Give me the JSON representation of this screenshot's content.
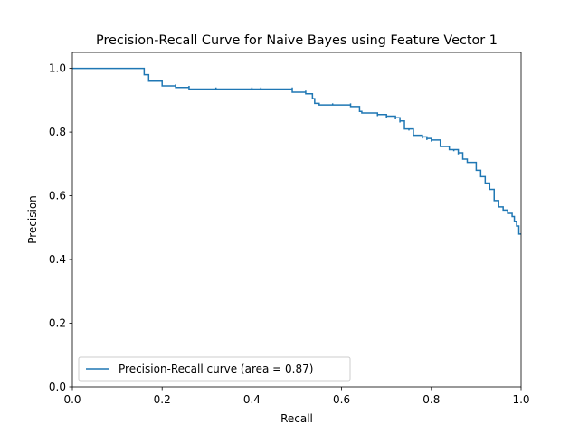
{
  "chart_data": {
    "type": "line",
    "title": "Precision-Recall Curve for Naive Bayes using Feature Vector 1",
    "xlabel": "Recall",
    "ylabel": "Precision",
    "xlim": [
      0,
      1
    ],
    "ylim": [
      0,
      1.05
    ],
    "x_ticks": [
      "0.0",
      "0.2",
      "0.4",
      "0.6",
      "0.8",
      "1.0"
    ],
    "y_ticks": [
      "0.0",
      "0.2",
      "0.4",
      "0.6",
      "0.8",
      "1.0"
    ],
    "grid": false,
    "legend_position": "lower left",
    "series": [
      {
        "name": "Precision-Recall curve (area = 0.87)",
        "color": "#1f77b4",
        "step": "post",
        "x": [
          0.0,
          0.16,
          0.16,
          0.17,
          0.17,
          0.2,
          0.2,
          0.23,
          0.23,
          0.26,
          0.26,
          0.32,
          0.32,
          0.4,
          0.4,
          0.42,
          0.42,
          0.49,
          0.49,
          0.52,
          0.52,
          0.535,
          0.535,
          0.54,
          0.545,
          0.55,
          0.55,
          0.56,
          0.58,
          0.58,
          0.62,
          0.62,
          0.64,
          0.64,
          0.645,
          0.645,
          0.65,
          0.68,
          0.68,
          0.7,
          0.7,
          0.72,
          0.72,
          0.73,
          0.73,
          0.74,
          0.74,
          0.75,
          0.75,
          0.76,
          0.76,
          0.78,
          0.78,
          0.79,
          0.79,
          0.8,
          0.8,
          0.82,
          0.82,
          0.84,
          0.84,
          0.85,
          0.85,
          0.86,
          0.86,
          0.87,
          0.87,
          0.88,
          0.88,
          0.9,
          0.9,
          0.91,
          0.91,
          0.92,
          0.92,
          0.93,
          0.93,
          0.94,
          0.94,
          0.95,
          0.95,
          0.96,
          0.96,
          0.97,
          0.97,
          0.98,
          0.98,
          0.985,
          0.985,
          0.99,
          0.99,
          0.995,
          0.995,
          1.0
        ],
        "y": [
          1.0,
          1.0,
          0.98,
          0.98,
          0.96,
          0.965,
          0.945,
          0.95,
          0.94,
          0.945,
          0.935,
          0.94,
          0.935,
          0.94,
          0.935,
          0.94,
          0.935,
          0.94,
          0.925,
          0.93,
          0.92,
          0.92,
          0.905,
          0.89,
          0.89,
          0.885,
          0.885,
          0.885,
          0.89,
          0.885,
          0.89,
          0.88,
          0.875,
          0.865,
          0.865,
          0.86,
          0.86,
          0.85,
          0.855,
          0.845,
          0.85,
          0.84,
          0.845,
          0.83,
          0.835,
          0.81,
          0.81,
          0.805,
          0.81,
          0.79,
          0.79,
          0.78,
          0.785,
          0.775,
          0.78,
          0.77,
          0.775,
          0.76,
          0.755,
          0.75,
          0.745,
          0.74,
          0.745,
          0.73,
          0.735,
          0.72,
          0.715,
          0.71,
          0.705,
          0.7,
          0.68,
          0.665,
          0.66,
          0.645,
          0.64,
          0.625,
          0.62,
          0.6,
          0.585,
          0.58,
          0.565,
          0.56,
          0.555,
          0.55,
          0.545,
          0.54,
          0.535,
          0.525,
          0.52,
          0.51,
          0.505,
          0.49,
          0.48,
          0.48
        ]
      }
    ]
  }
}
